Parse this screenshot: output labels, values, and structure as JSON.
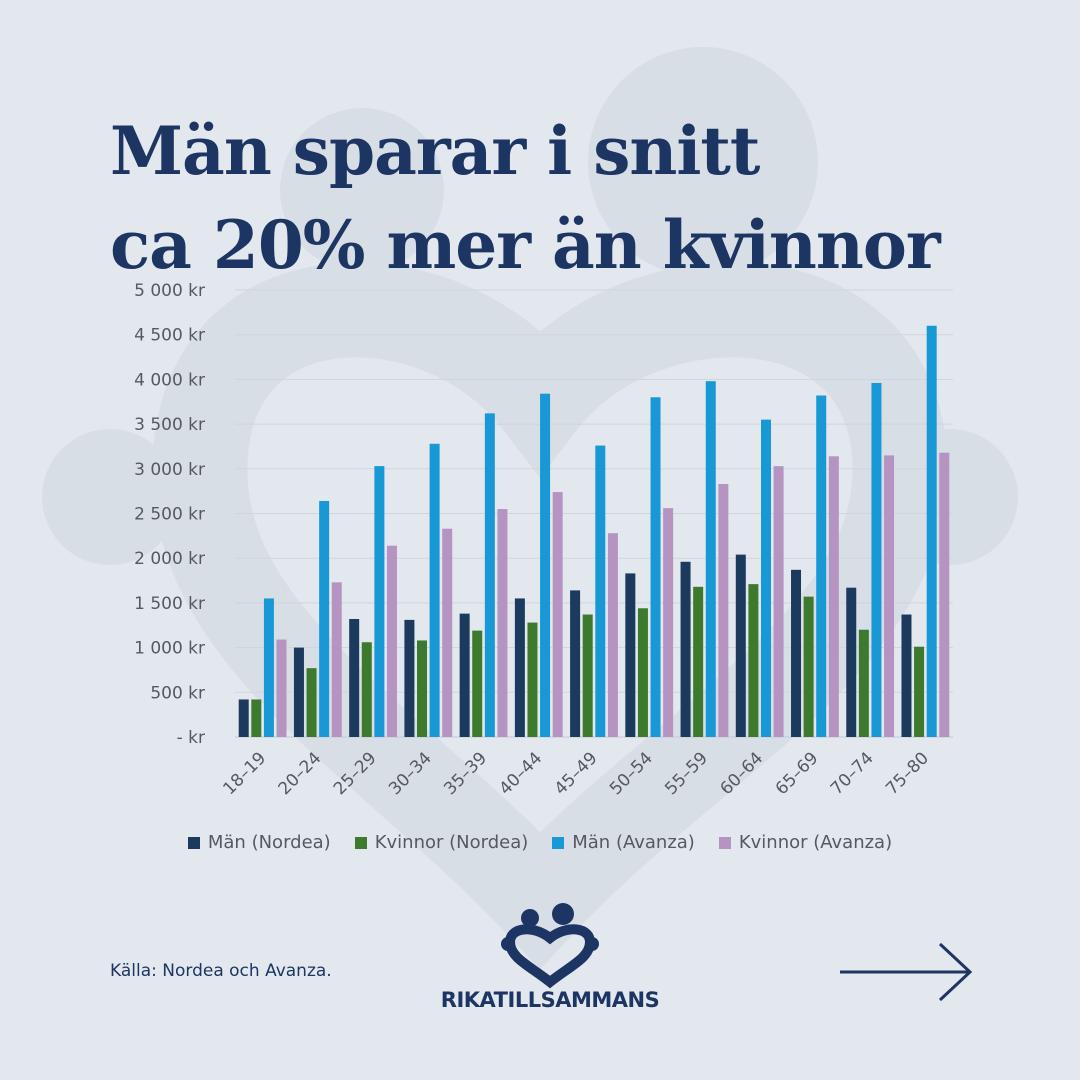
{
  "title_line1": "Män sparar i snitt",
  "title_line2": "ca 20% mer än kvinnor",
  "source": "Källa: Nordea och Avanza.",
  "brand": {
    "name": "RIKATILLSAMMANS"
  },
  "colors": {
    "background": "#e3e8ee",
    "title": "#1d3563",
    "watermark": "#d6dce4"
  },
  "chart_data": {
    "type": "bar",
    "categories": [
      "18–19",
      "20–24",
      "25–29",
      "30–34",
      "35–39",
      "40–44",
      "45–49",
      "50–54",
      "55–59",
      "60–64",
      "65–69",
      "70–74",
      "75–80"
    ],
    "y_ticks": [
      0,
      500,
      1000,
      1500,
      2000,
      2500,
      3000,
      3500,
      4000,
      4500,
      5000
    ],
    "y_tick_labels": [
      "-   kr",
      "500 kr",
      "1 000 kr",
      "1 500 kr",
      "2 000 kr",
      "2 500 kr",
      "3 000 kr",
      "3 500 kr",
      "4 000 kr",
      "4 500 kr",
      "5 000 kr"
    ],
    "ylim": [
      0,
      5000
    ],
    "grid": true,
    "legend_position": "bottom",
    "series": [
      {
        "name": "Män (Nordea)",
        "color": "#1b3a5e",
        "values": [
          420,
          1000,
          1320,
          1310,
          1380,
          1550,
          1640,
          1830,
          1960,
          2040,
          1870,
          1670,
          1370
        ]
      },
      {
        "name": "Kvinnor (Nordea)",
        "color": "#3d7a2d",
        "values": [
          420,
          770,
          1060,
          1080,
          1190,
          1280,
          1370,
          1440,
          1680,
          1710,
          1570,
          1200,
          1010
        ]
      },
      {
        "name": "Män (Avanza)",
        "color": "#1898d5",
        "values": [
          1550,
          2640,
          3030,
          3280,
          3620,
          3840,
          3260,
          3800,
          3980,
          3550,
          3820,
          3960,
          4600
        ]
      },
      {
        "name": "Kvinnor (Avanza)",
        "color": "#b694c2",
        "values": [
          1090,
          1730,
          2140,
          2330,
          2550,
          2740,
          2280,
          2560,
          2830,
          3030,
          3140,
          3150,
          3180
        ]
      }
    ]
  }
}
